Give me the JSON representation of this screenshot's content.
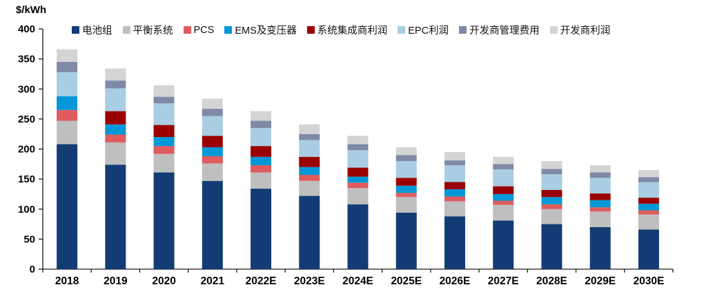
{
  "chart_data": {
    "type": "bar",
    "stacked": true,
    "title": "$/kWh",
    "ylabel": "$/kWh",
    "xlabel": "",
    "ylim": [
      0,
      400
    ],
    "ytick_step": 50,
    "grid": false,
    "legend_position": "top",
    "categories": [
      "2018",
      "2019",
      "2020",
      "2021",
      "2022E",
      "2023E",
      "2024E",
      "2025E",
      "2026E",
      "2027E",
      "2028E",
      "2029E",
      "2030E"
    ],
    "series": [
      {
        "name": "电池组",
        "color": "#133C74",
        "values": [
          208,
          174,
          161,
          147,
          134,
          122,
          108,
          94,
          88,
          81,
          75,
          70,
          66
        ]
      },
      {
        "name": "平衡系统",
        "color": "#BFBFBF",
        "values": [
          39,
          37,
          31,
          29,
          27,
          25,
          27,
          26,
          25,
          26,
          25,
          26,
          25
        ]
      },
      {
        "name": "PCS",
        "color": "#DF5B5E",
        "values": [
          18,
          13,
          13,
          12,
          12,
          10,
          9,
          7,
          8,
          7,
          8,
          7,
          7
        ]
      },
      {
        "name": "EMS及变压器",
        "color": "#0098D6",
        "values": [
          23,
          17,
          15,
          15,
          14,
          13,
          10,
          12,
          12,
          11,
          12,
          12,
          11
        ]
      },
      {
        "name": "系统集成商利润",
        "color": "#9B0000",
        "values": [
          0,
          22,
          20,
          19,
          18,
          17,
          15,
          13,
          12,
          13,
          12,
          11,
          10
        ]
      },
      {
        "name": "EPC利润",
        "color": "#A9CDE2",
        "values": [
          40,
          38,
          36,
          33,
          30,
          28,
          29,
          28,
          28,
          28,
          26,
          26,
          26
        ]
      },
      {
        "name": "开发商管理费用",
        "color": "#7F8AA6",
        "values": [
          17,
          13,
          11,
          12,
          12,
          10,
          10,
          10,
          8,
          9,
          9,
          9,
          8
        ]
      },
      {
        "name": "开发商利润",
        "color": "#D4D4D4",
        "values": [
          21,
          20,
          19,
          17,
          16,
          16,
          14,
          13,
          14,
          12,
          13,
          12,
          12
        ]
      }
    ],
    "axis_color": "#1a1a1a"
  }
}
